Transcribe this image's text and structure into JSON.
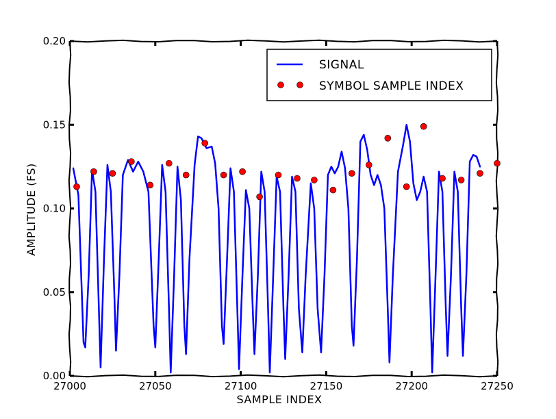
{
  "chart_data": {
    "type": "line",
    "xlabel": "SAMPLE INDEX",
    "ylabel": "AMPLITUDE (FS)",
    "xlim": [
      27000,
      27250
    ],
    "ylim": [
      0.0,
      0.2
    ],
    "x_ticks": [
      "27000",
      "27050",
      "27100",
      "27150",
      "27200",
      "27250"
    ],
    "y_ticks": [
      "0.00",
      "0.05",
      "0.10",
      "0.15",
      "0.20"
    ],
    "grid": false,
    "legend_position": "top-right",
    "colors": {
      "signal": "#0000ff",
      "markers": "#ff0000"
    },
    "series": [
      {
        "name": "SIGNAL",
        "kind": "line",
        "points": [
          [
            27002,
            0.124
          ],
          [
            27005,
            0.108
          ],
          [
            27008,
            0.02
          ],
          [
            27009,
            0.017
          ],
          [
            27011,
            0.06
          ],
          [
            27013,
            0.123
          ],
          [
            27015,
            0.11
          ],
          [
            27017,
            0.04
          ],
          [
            27018,
            0.005
          ],
          [
            27020,
            0.07
          ],
          [
            27022,
            0.126
          ],
          [
            27024,
            0.11
          ],
          [
            27026,
            0.05
          ],
          [
            27027,
            0.015
          ],
          [
            27029,
            0.06
          ],
          [
            27031,
            0.12
          ],
          [
            27034,
            0.129
          ],
          [
            27037,
            0.122
          ],
          [
            27040,
            0.128
          ],
          [
            27043,
            0.122
          ],
          [
            27046,
            0.11
          ],
          [
            27049,
            0.03
          ],
          [
            27050,
            0.017
          ],
          [
            27052,
            0.07
          ],
          [
            27054,
            0.126
          ],
          [
            27056,
            0.11
          ],
          [
            27058,
            0.04
          ],
          [
            27059,
            0.002
          ],
          [
            27061,
            0.06
          ],
          [
            27063,
            0.125
          ],
          [
            27065,
            0.105
          ],
          [
            27067,
            0.03
          ],
          [
            27068,
            0.013
          ],
          [
            27070,
            0.07
          ],
          [
            27073,
            0.126
          ],
          [
            27075,
            0.143
          ],
          [
            27077,
            0.142
          ],
          [
            27080,
            0.136
          ],
          [
            27083,
            0.137
          ],
          [
            27085,
            0.127
          ],
          [
            27087,
            0.1
          ],
          [
            27089,
            0.03
          ],
          [
            27090,
            0.019
          ],
          [
            27092,
            0.07
          ],
          [
            27094,
            0.124
          ],
          [
            27096,
            0.11
          ],
          [
            27098,
            0.04
          ],
          [
            27099,
            0.004
          ],
          [
            27101,
            0.06
          ],
          [
            27103,
            0.111
          ],
          [
            27105,
            0.1
          ],
          [
            27107,
            0.04
          ],
          [
            27108,
            0.013
          ],
          [
            27110,
            0.06
          ],
          [
            27112,
            0.122
          ],
          [
            27114,
            0.11
          ],
          [
            27116,
            0.04
          ],
          [
            27117,
            0.002
          ],
          [
            27119,
            0.06
          ],
          [
            27121,
            0.119
          ],
          [
            27123,
            0.11
          ],
          [
            27125,
            0.04
          ],
          [
            27126,
            0.01
          ],
          [
            27128,
            0.06
          ],
          [
            27130,
            0.119
          ],
          [
            27132,
            0.11
          ],
          [
            27134,
            0.04
          ],
          [
            27136,
            0.014
          ],
          [
            27138,
            0.06
          ],
          [
            27141,
            0.115
          ],
          [
            27143,
            0.1
          ],
          [
            27145,
            0.04
          ],
          [
            27147,
            0.014
          ],
          [
            27149,
            0.06
          ],
          [
            27151,
            0.12
          ],
          [
            27153,
            0.125
          ],
          [
            27155,
            0.121
          ],
          [
            27157,
            0.125
          ],
          [
            27159,
            0.134
          ],
          [
            27161,
            0.124
          ],
          [
            27163,
            0.1
          ],
          [
            27165,
            0.03
          ],
          [
            27166,
            0.018
          ],
          [
            27168,
            0.07
          ],
          [
            27170,
            0.14
          ],
          [
            27172,
            0.144
          ],
          [
            27174,
            0.135
          ],
          [
            27176,
            0.12
          ],
          [
            27178,
            0.114
          ],
          [
            27180,
            0.12
          ],
          [
            27182,
            0.114
          ],
          [
            27184,
            0.1
          ],
          [
            27186,
            0.04
          ],
          [
            27187,
            0.008
          ],
          [
            27189,
            0.06
          ],
          [
            27192,
            0.122
          ],
          [
            27195,
            0.138
          ],
          [
            27197,
            0.15
          ],
          [
            27199,
            0.14
          ],
          [
            27201,
            0.115
          ],
          [
            27203,
            0.105
          ],
          [
            27205,
            0.11
          ],
          [
            27207,
            0.119
          ],
          [
            27209,
            0.11
          ],
          [
            27211,
            0.04
          ],
          [
            27212,
            0.002
          ],
          [
            27214,
            0.06
          ],
          [
            27216,
            0.122
          ],
          [
            27218,
            0.11
          ],
          [
            27220,
            0.04
          ],
          [
            27221,
            0.012
          ],
          [
            27223,
            0.06
          ],
          [
            27225,
            0.122
          ],
          [
            27227,
            0.11
          ],
          [
            27229,
            0.04
          ],
          [
            27230,
            0.012
          ],
          [
            27232,
            0.06
          ],
          [
            27234,
            0.128
          ],
          [
            27236,
            0.132
          ],
          [
            27238,
            0.131
          ],
          [
            27240,
            0.125
          ]
        ]
      },
      {
        "name": "SYMBOL SAMPLE INDEX",
        "kind": "scatter",
        "points": [
          [
            27004,
            0.113
          ],
          [
            27014,
            0.122
          ],
          [
            27025,
            0.121
          ],
          [
            27036,
            0.128
          ],
          [
            27047,
            0.114
          ],
          [
            27058,
            0.127
          ],
          [
            27068,
            0.12
          ],
          [
            27079,
            0.139
          ],
          [
            27090,
            0.12
          ],
          [
            27101,
            0.122
          ],
          [
            27111,
            0.107
          ],
          [
            27122,
            0.12
          ],
          [
            27133,
            0.118
          ],
          [
            27143,
            0.117
          ],
          [
            27154,
            0.111
          ],
          [
            27165,
            0.121
          ],
          [
            27175,
            0.126
          ],
          [
            27186,
            0.142
          ],
          [
            27197,
            0.113
          ],
          [
            27207,
            0.149
          ],
          [
            27218,
            0.118
          ],
          [
            27229,
            0.117
          ],
          [
            27240,
            0.121
          ],
          [
            27250,
            0.127
          ]
        ]
      }
    ]
  }
}
